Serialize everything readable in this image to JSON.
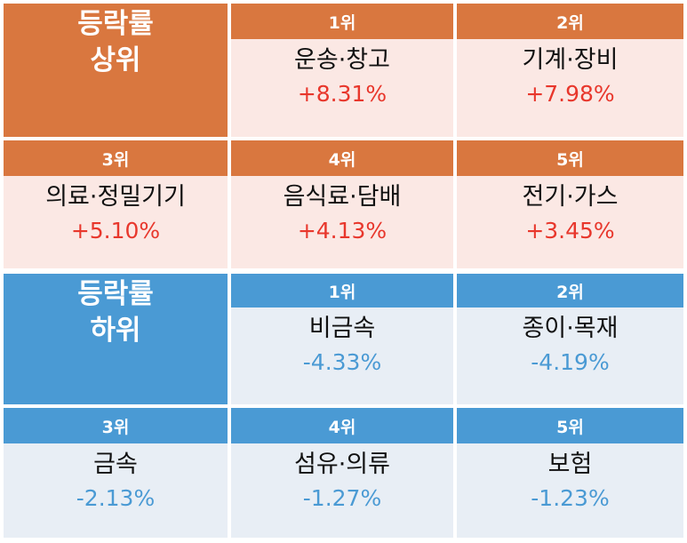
{
  "gainers": {
    "title_line1": "등락률",
    "title_line2": "상위",
    "items": [
      {
        "rank": "1위",
        "sector": "운송·창고",
        "change": "+8.31%"
      },
      {
        "rank": "2위",
        "sector": "기계·장비",
        "change": "+7.98%"
      },
      {
        "rank": "3위",
        "sector": "의료·정밀기기",
        "change": "+5.10%"
      },
      {
        "rank": "4위",
        "sector": "음식료·담배",
        "change": "+4.13%"
      },
      {
        "rank": "5위",
        "sector": "전기·가스",
        "change": "+3.45%"
      }
    ]
  },
  "losers": {
    "title_line1": "등락률",
    "title_line2": "하위",
    "items": [
      {
        "rank": "1위",
        "sector": "비금속",
        "change": "-4.33%"
      },
      {
        "rank": "2위",
        "sector": "종이·목재",
        "change": "-4.19%"
      },
      {
        "rank": "3위",
        "sector": "금속",
        "change": "-2.13%"
      },
      {
        "rank": "4위",
        "sector": "섬유·의류",
        "change": "-1.27%"
      },
      {
        "rank": "5위",
        "sector": "보험",
        "change": "-1.23%"
      }
    ]
  },
  "colors": {
    "gain_header": "#d9773f",
    "gain_cell": "#fbe8e4",
    "gain_value": "#e8372c",
    "loss_header": "#4a9ad4",
    "loss_cell": "#e8eef5",
    "loss_value": "#4a9ad4"
  }
}
